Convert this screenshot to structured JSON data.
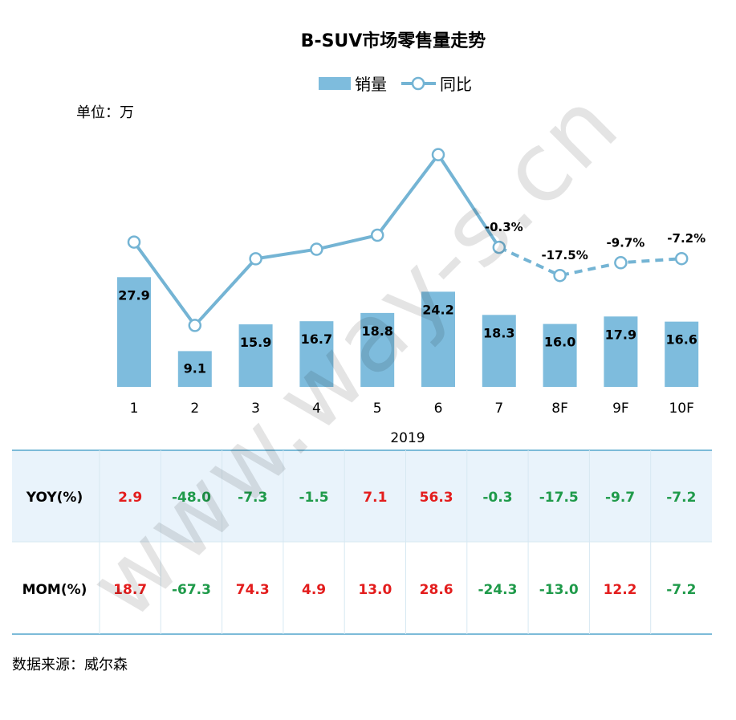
{
  "title": "B-SUV市场零售量走势",
  "legend": {
    "bar": "销量",
    "line": "同比"
  },
  "unit": "单位：万",
  "year": "2019",
  "source": "数据来源：威尔森",
  "watermark": "www.way-s.cn",
  "colors": {
    "bar": "#7ebcdd",
    "line": "#74b4d4",
    "positive": "#e31d1d",
    "negative": "#1f9a4a",
    "table_bg": "#e9f3fb",
    "border": "#7cbbd8"
  },
  "chart_data": {
    "type": "bar",
    "categories": [
      "1",
      "2",
      "3",
      "4",
      "5",
      "6",
      "7",
      "8F",
      "9F",
      "10F"
    ],
    "series": [
      {
        "name": "销量",
        "type": "bar",
        "values": [
          27.9,
          9.1,
          15.9,
          16.7,
          18.8,
          24.2,
          18.3,
          16.0,
          17.9,
          16.6
        ]
      },
      {
        "name": "同比",
        "type": "line",
        "values": [
          2.9,
          -48.0,
          -7.3,
          -1.5,
          7.1,
          56.3,
          -0.3,
          -17.5,
          -9.7,
          -7.2
        ],
        "dashed_from_index": 6
      }
    ],
    "line_labels": [
      "",
      "",
      "",
      "",
      "",
      "",
      "-0.3%",
      "-17.5%",
      "-9.7%",
      "-7.2%"
    ],
    "bar_labels": [
      "27.9",
      "9.1",
      "15.9",
      "16.7",
      "18.8",
      "24.2",
      "18.3",
      "16.0",
      "17.9",
      "16.6"
    ]
  },
  "table": {
    "rows": [
      {
        "label": "YOY(%)",
        "values": [
          "2.9",
          "-48.0",
          "-7.3",
          "-1.5",
          "7.1",
          "56.3",
          "-0.3",
          "-17.5",
          "-9.7",
          "-7.2"
        ]
      },
      {
        "label": "MOM(%)",
        "values": [
          "18.7",
          "-67.3",
          "74.3",
          "4.9",
          "13.0",
          "28.6",
          "-24.3",
          "-13.0",
          "12.2",
          "-7.2"
        ]
      }
    ]
  }
}
